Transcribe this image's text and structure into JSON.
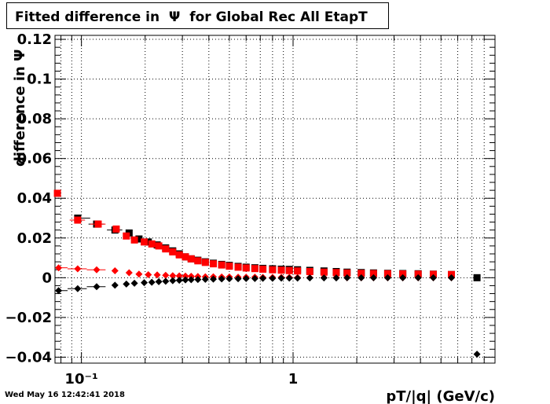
{
  "chart_data": {
    "type": "scatter",
    "title": "Fitted difference in  Ψ  for Global Rec All EtapT",
    "xlabel": "pT/|q| (GeV/c)",
    "ylabel": "difference in  Ψ",
    "xscale": "log",
    "xlim": [
      0.075,
      9.0
    ],
    "ylim": [
      -0.043,
      0.122
    ],
    "grid": true,
    "yticks": [
      -0.04,
      -0.02,
      0,
      0.02,
      0.04,
      0.06,
      0.08,
      0.1,
      0.12
    ],
    "ytick_labels": [
      "−0.04",
      "−0.02",
      "0",
      "0.02",
      "0.04",
      "0.06",
      "0.08",
      "0.1",
      "0.12"
    ],
    "xticks": [
      0.1,
      1
    ],
    "xtick_labels": [
      "10⁻¹",
      "1"
    ],
    "series": [
      {
        "marker": "square",
        "color": "#000000",
        "x": [
          0.096,
          0.118,
          0.144,
          0.168,
          0.187,
          0.207,
          0.228,
          0.25,
          0.27,
          0.29,
          0.31,
          0.33,
          0.355,
          0.385,
          0.42,
          0.46,
          0.5,
          0.55,
          0.6,
          0.66,
          0.72,
          0.8,
          0.88,
          0.96,
          1.05,
          1.2,
          1.4,
          1.6,
          1.8,
          2.1,
          2.4,
          2.8,
          3.3,
          3.9,
          4.6,
          5.6,
          7.4
        ],
        "y": [
          0.03,
          0.027,
          0.024,
          0.0225,
          0.0195,
          0.018,
          0.0165,
          0.015,
          0.0135,
          0.012,
          0.0105,
          0.0095,
          0.0088,
          0.008,
          0.0073,
          0.0067,
          0.0062,
          0.0057,
          0.0053,
          0.005,
          0.0047,
          0.0045,
          0.0043,
          0.0042,
          0.004,
          0.0037,
          0.0034,
          0.0031,
          0.0028,
          0.0026,
          0.0024,
          0.0022,
          0.0021,
          0.002,
          0.0018,
          0.0016,
          0.0
        ],
        "xerr_lo": [
          0.0,
          0.01,
          0.012
        ],
        "xerr_hi": [
          0.014,
          0.01,
          0.012
        ]
      },
      {
        "marker": "square",
        "color": "#ff0000",
        "x": [
          0.077,
          0.096,
          0.12,
          0.146,
          0.163,
          0.178,
          0.198,
          0.215,
          0.232,
          0.25,
          0.27,
          0.29,
          0.31,
          0.33,
          0.355,
          0.385,
          0.42,
          0.46,
          0.5,
          0.55,
          0.6,
          0.66,
          0.72,
          0.8,
          0.88,
          0.96,
          1.05,
          1.2,
          1.4,
          1.6,
          1.8,
          2.1,
          2.4,
          2.8,
          3.3,
          3.9,
          4.6,
          5.6
        ],
        "y": [
          0.0425,
          0.029,
          0.027,
          0.0245,
          0.021,
          0.019,
          0.018,
          0.017,
          0.016,
          0.0145,
          0.013,
          0.0115,
          0.0105,
          0.0095,
          0.0085,
          0.0077,
          0.007,
          0.0064,
          0.0058,
          0.0053,
          0.0049,
          0.0046,
          0.0043,
          0.004,
          0.0038,
          0.0036,
          0.0034,
          0.0031,
          0.0028,
          0.0026,
          0.0024,
          0.0022,
          0.0021,
          0.002,
          0.0019,
          0.0018,
          0.0017,
          0.0016
        ],
        "xerr_lo": [
          0.0,
          0.008,
          0.01
        ],
        "xerr_hi": [
          0.0,
          0.008,
          0.01
        ]
      },
      {
        "marker": "diamond",
        "color": "#ff0000",
        "x": [
          0.078,
          0.096,
          0.118,
          0.144,
          0.168,
          0.187,
          0.207,
          0.228,
          0.25,
          0.27,
          0.29,
          0.31,
          0.33,
          0.355,
          0.385,
          0.42,
          0.46,
          0.5,
          0.55,
          0.6,
          0.66,
          0.72,
          0.8,
          0.88,
          0.96,
          1.05,
          1.2,
          1.4,
          1.6,
          1.8,
          2.1,
          2.4,
          2.8,
          3.3,
          3.9,
          4.6,
          5.6
        ],
        "y": [
          0.005,
          0.0045,
          0.004,
          0.0035,
          0.0025,
          0.0018,
          0.0015,
          0.0014,
          0.0012,
          0.001,
          0.0009,
          0.0008,
          0.0007,
          0.0006,
          0.0005,
          0.0005,
          0.0004,
          0.0004,
          0.0003,
          0.0003,
          0.0003,
          0.0002,
          0.0002,
          0.0002,
          0.0002,
          0.0001,
          0.0001,
          0.0001,
          0.0001,
          0.0,
          0.0,
          0.0,
          0.0,
          0.0,
          0.0,
          0.0,
          0.0
        ],
        "xerr_lo": [
          0.0,
          0.01,
          0.012
        ],
        "xerr_hi": [
          0.008,
          0.01,
          0.012
        ]
      },
      {
        "marker": "diamond",
        "color": "#000000",
        "x": [
          0.078,
          0.096,
          0.118,
          0.144,
          0.163,
          0.178,
          0.198,
          0.215,
          0.232,
          0.25,
          0.27,
          0.29,
          0.31,
          0.33,
          0.355,
          0.385,
          0.42,
          0.46,
          0.5,
          0.55,
          0.6,
          0.66,
          0.72,
          0.8,
          0.88,
          0.96,
          1.05,
          1.2,
          1.4,
          1.6,
          1.8,
          2.1,
          2.4,
          2.8,
          3.3,
          3.9,
          4.6,
          5.6,
          7.4
        ],
        "y": [
          -0.0065,
          -0.0055,
          -0.0045,
          -0.0038,
          -0.0032,
          -0.0028,
          -0.0025,
          -0.0023,
          -0.002,
          -0.0018,
          -0.0015,
          -0.0013,
          -0.0011,
          -0.001,
          -0.0009,
          -0.0008,
          -0.0007,
          -0.0006,
          -0.0005,
          -0.0005,
          -0.0004,
          -0.0004,
          -0.0003,
          -0.0003,
          -0.0002,
          -0.0002,
          -0.0002,
          -0.0001,
          -0.0001,
          -0.0001,
          0.0,
          0.0,
          0.0,
          0.0,
          0.0,
          0.0,
          0.0,
          0.0,
          -0.0385
        ],
        "xerr_lo": [
          0.0,
          0.01,
          0.012
        ],
        "xerr_hi": [
          0.008,
          0.01,
          0.012
        ]
      }
    ]
  },
  "footer": {
    "timestamp": "Wed May 16 12:42:41 2018"
  }
}
